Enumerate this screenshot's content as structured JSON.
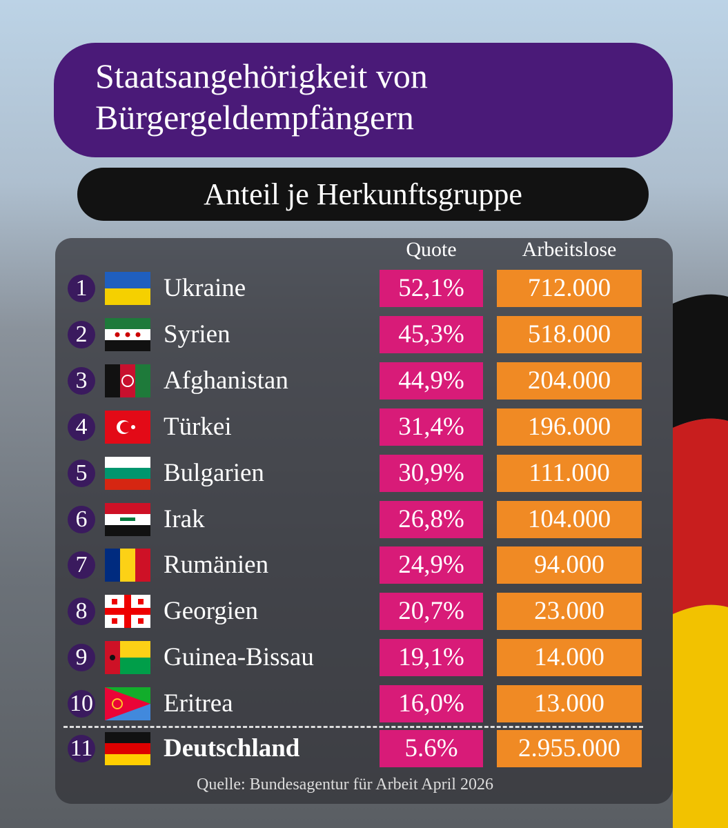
{
  "title": "Staatsangehörigkeit von Bürgergeldempfängern",
  "subtitle": "Anteil je Herkunftsgruppe",
  "table": {
    "header": [
      "Quote",
      "Arbeitslose"
    ],
    "rows": [
      {
        "rank": "1",
        "country": "Ukraine",
        "quote": "52,1%",
        "count": "712.000"
      },
      {
        "rank": "2",
        "country": "Syrien",
        "quote": "45,3%",
        "count": "518.000"
      },
      {
        "rank": "3",
        "country": "Afghanistan",
        "quote": "44,9%",
        "count": "204.000"
      },
      {
        "rank": "4",
        "country": "Türkei",
        "quote": "31,4%",
        "count": "196.000"
      },
      {
        "rank": "5",
        "country": "Bulgarien",
        "quote": "30,9%",
        "count": "111.000"
      },
      {
        "rank": "6",
        "country": "Irak",
        "quote": "26,8%",
        "count": "104.000"
      },
      {
        "rank": "7",
        "country": "Rumänien",
        "quote": "24,9%",
        "count": "94.000"
      },
      {
        "rank": "8",
        "country": "Georgien",
        "quote": "20,7%",
        "count": "23.000"
      },
      {
        "rank": "9",
        "country": "Guinea-Bissau",
        "quote": "19,1%",
        "count": "14.000"
      },
      {
        "rank": "10",
        "country": "Eritrea",
        "quote": "16,0%",
        "count": "13.000"
      },
      {
        "rank": "11",
        "country": "Deutschland",
        "quote": "5.6%",
        "count": "2.955.000"
      }
    ]
  },
  "source": "Quelle: Bundesagentur für Arbeit April 2026"
}
